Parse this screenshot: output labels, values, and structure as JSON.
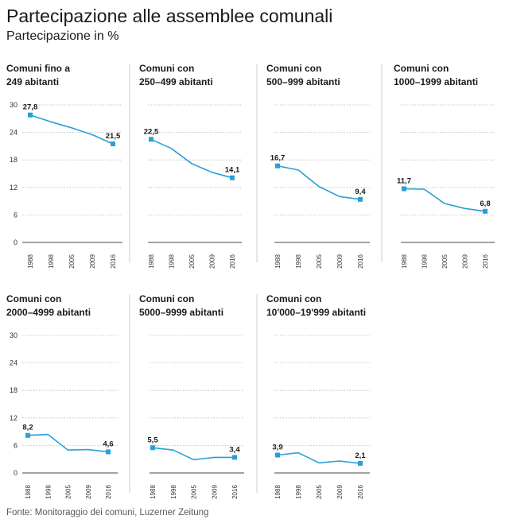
{
  "title": "Partecipazione alle assemblee comunali",
  "subtitle": "Partecipazione in %",
  "source": "Fonte: Monitoraggio dei comuni, Luzerner Zeitung",
  "colors": {
    "line": "#2a9fd6",
    "marker": "#2a9fd6"
  },
  "chart_data": [
    {
      "type": "line",
      "title_lines": [
        "Comuni fino a",
        "249 abitanti"
      ],
      "x": [
        "1988",
        "1998",
        "2005",
        "2009",
        "2016"
      ],
      "values": [
        27.8,
        26.3,
        25.0,
        23.5,
        21.5
      ],
      "labels": [
        {
          "index": 0,
          "text": "27,8"
        },
        {
          "index": 4,
          "text": "21,5"
        }
      ],
      "yticks": [
        "0",
        "6",
        "12",
        "18",
        "24",
        "30"
      ],
      "ylim": [
        0,
        30
      ]
    },
    {
      "type": "line",
      "title_lines": [
        "Comuni con",
        "250–499 abitanti"
      ],
      "x": [
        "1988",
        "1998",
        "2005",
        "2009",
        "2016"
      ],
      "values": [
        22.5,
        20.5,
        17.2,
        15.3,
        14.1
      ],
      "labels": [
        {
          "index": 0,
          "text": "22,5"
        },
        {
          "index": 4,
          "text": "14,1"
        }
      ],
      "yticks": [],
      "ylim": [
        0,
        30
      ]
    },
    {
      "type": "line",
      "title_lines": [
        "Comuni con",
        "500–999 abitanti"
      ],
      "x": [
        "1988",
        "1998",
        "2005",
        "2009",
        "2016"
      ],
      "values": [
        16.7,
        15.8,
        12.2,
        10.0,
        9.4
      ],
      "labels": [
        {
          "index": 0,
          "text": "16,7"
        },
        {
          "index": 4,
          "text": "9,4"
        }
      ],
      "yticks": [],
      "ylim": [
        0,
        30
      ]
    },
    {
      "type": "line",
      "title_lines": [
        "Comuni con",
        "1000–1999 abitanti"
      ],
      "x": [
        "1988",
        "1998",
        "2005",
        "2009",
        "2016"
      ],
      "values": [
        11.7,
        11.6,
        8.5,
        7.4,
        6.8
      ],
      "labels": [
        {
          "index": 0,
          "text": "11,7"
        },
        {
          "index": 4,
          "text": "6,8"
        }
      ],
      "yticks": [],
      "ylim": [
        0,
        30
      ]
    },
    {
      "type": "line",
      "title_lines": [
        "Comuni con",
        "2000–4999 abitanti"
      ],
      "x": [
        "1988",
        "1998",
        "2005",
        "2009",
        "2016"
      ],
      "values": [
        8.2,
        8.4,
        5.0,
        5.1,
        4.6
      ],
      "labels": [
        {
          "index": 0,
          "text": "8,2"
        },
        {
          "index": 4,
          "text": "4,6"
        }
      ],
      "yticks": [
        "0",
        "6",
        "12",
        "18",
        "24",
        "30"
      ],
      "ylim": [
        0,
        30
      ]
    },
    {
      "type": "line",
      "title_lines": [
        "Comuni con",
        "5000–9999 abitanti"
      ],
      "x": [
        "1988",
        "1998",
        "2005",
        "2009",
        "2016"
      ],
      "values": [
        5.5,
        5.0,
        2.9,
        3.4,
        3.4
      ],
      "labels": [
        {
          "index": 0,
          "text": "5,5"
        },
        {
          "index": 4,
          "text": "3,4"
        }
      ],
      "yticks": [],
      "ylim": [
        0,
        30
      ]
    },
    {
      "type": "line",
      "title_lines": [
        "Comuni con",
        "10'000–19'999 abitanti"
      ],
      "x": [
        "1988",
        "1998",
        "2005",
        "2009",
        "2016"
      ],
      "values": [
        3.9,
        4.4,
        2.2,
        2.6,
        2.1
      ],
      "labels": [
        {
          "index": 0,
          "text": "3,9"
        },
        {
          "index": 4,
          "text": "2,1"
        }
      ],
      "yticks": [],
      "ylim": [
        0,
        30
      ]
    }
  ]
}
